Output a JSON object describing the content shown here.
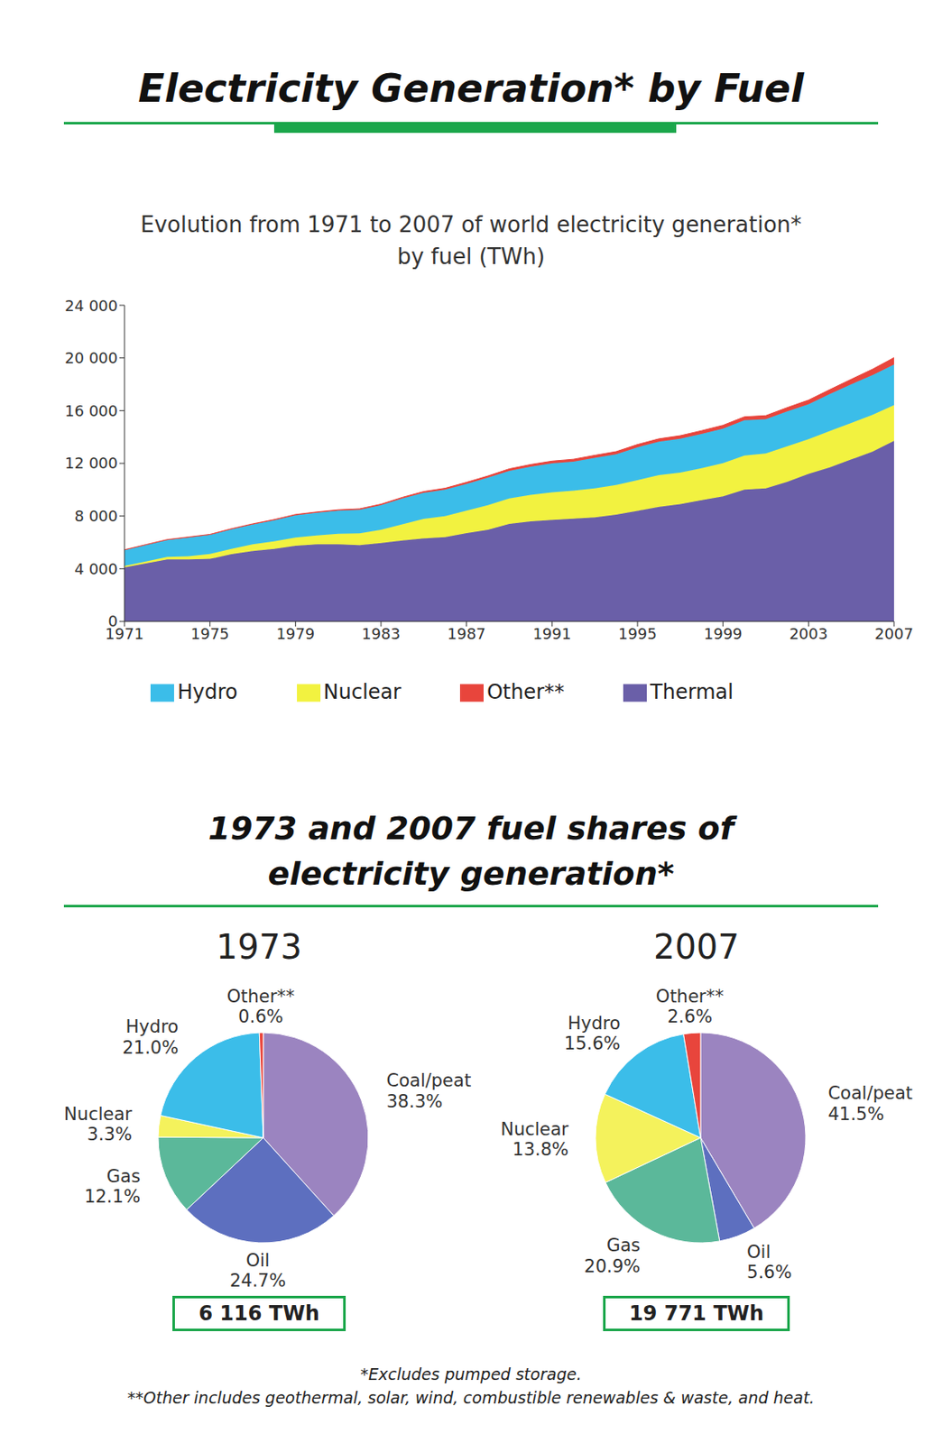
{
  "title": "Electricity Generation* by Fuel",
  "section_title": "1973 and 2007 fuel shares of electricity generation*",
  "footnotes": [
    "*Excludes pumped storage.",
    "**Other includes geothermal, solar, wind, combustible renewables & waste, and heat."
  ],
  "chart_data": [
    {
      "type": "area",
      "stacked": true,
      "title": "Evolution from 1971 to 2007 of world electricity generation* by fuel (TWh)",
      "legend": "bottom",
      "x": [
        1971,
        1972,
        1973,
        1974,
        1975,
        1976,
        1977,
        1978,
        1979,
        1980,
        1981,
        1982,
        1983,
        1984,
        1985,
        1986,
        1987,
        1988,
        1989,
        1990,
        1991,
        1992,
        1993,
        1994,
        1995,
        1996,
        1997,
        1998,
        1999,
        2000,
        2001,
        2002,
        2003,
        2004,
        2005,
        2006,
        2007
      ],
      "xlim": [
        1971,
        2007
      ],
      "xticks": [
        1971,
        1975,
        1979,
        1983,
        1987,
        1991,
        1995,
        1999,
        2003,
        2007
      ],
      "ylim": [
        0,
        24000
      ],
      "yticks": [
        0,
        {
          "value": 4000,
          "label": "4 000"
        },
        {
          "value": 8000,
          "label": "8 000"
        },
        {
          "value": 12000,
          "label": "12 000"
        },
        {
          "value": 16000,
          "label": "16 000"
        },
        {
          "value": 20000,
          "label": "20 000"
        },
        {
          "value": 24000,
          "label": "24 000"
        }
      ],
      "series": [
        {
          "name": "Thermal",
          "color": "#6a5fa8",
          "values": [
            4100,
            4400,
            4700,
            4700,
            4750,
            5100,
            5350,
            5500,
            5750,
            5850,
            5850,
            5800,
            5950,
            6150,
            6300,
            6400,
            6700,
            6950,
            7400,
            7600,
            7700,
            7800,
            7900,
            8100,
            8400,
            8700,
            8900,
            9200,
            9500,
            10000,
            10100,
            10600,
            11200,
            11700,
            12300,
            12900,
            13700
          ]
        },
        {
          "name": "Nuclear",
          "color": "#f2f240",
          "values": [
            110,
            150,
            200,
            250,
            370,
            410,
            510,
            580,
            610,
            680,
            800,
            880,
            1000,
            1230,
            1480,
            1600,
            1710,
            1880,
            1930,
            2000,
            2100,
            2120,
            2200,
            2250,
            2330,
            2410,
            2390,
            2430,
            2520,
            2590,
            2650,
            2690,
            2640,
            2760,
            2770,
            2790,
            2720
          ]
        },
        {
          "name": "Hydro",
          "color": "#3bbde9",
          "values": [
            1200,
            1250,
            1280,
            1420,
            1450,
            1480,
            1500,
            1600,
            1700,
            1720,
            1760,
            1800,
            1870,
            1950,
            1980,
            2000,
            2030,
            2080,
            2100,
            2150,
            2200,
            2210,
            2320,
            2340,
            2490,
            2530,
            2580,
            2610,
            2620,
            2680,
            2600,
            2650,
            2650,
            2800,
            2930,
            3020,
            3080
          ]
        },
        {
          "name": "Other**",
          "color": "#e8453c",
          "values": [
            30,
            32,
            35,
            38,
            40,
            45,
            48,
            52,
            55,
            60,
            65,
            70,
            80,
            90,
            100,
            110,
            120,
            130,
            150,
            160,
            170,
            180,
            190,
            200,
            210,
            220,
            230,
            240,
            250,
            260,
            270,
            290,
            310,
            340,
            380,
            440,
            520
          ]
        }
      ]
    },
    {
      "type": "pie",
      "title": "1973",
      "categories": [
        "Coal/peat",
        "Oil",
        "Gas",
        "Nuclear",
        "Hydro",
        "Other**"
      ],
      "values": [
        38.3,
        24.7,
        12.1,
        3.3,
        21.0,
        0.6
      ],
      "value_labels": [
        "38.3%",
        "24.7%",
        "12.1%",
        "3.3%",
        "21.0%",
        "0.6%"
      ],
      "colors": [
        "#9b84c0",
        "#5d6fbf",
        "#5bb89a",
        "#f4f25c",
        "#3bbde9",
        "#e8453c"
      ],
      "total": {
        "value": 6116,
        "label": "6 116 TWh"
      }
    },
    {
      "type": "pie",
      "title": "2007",
      "categories": [
        "Coal/peat",
        "Oil",
        "Gas",
        "Nuclear",
        "Hydro",
        "Other**"
      ],
      "values": [
        41.5,
        5.6,
        20.9,
        13.8,
        15.6,
        2.6
      ],
      "value_labels": [
        "41.5%",
        "5.6%",
        "20.9%",
        "13.8%",
        "15.6%",
        "2.6%"
      ],
      "colors": [
        "#9b84c0",
        "#5d6fbf",
        "#5bb89a",
        "#f4f25c",
        "#3bbde9",
        "#e8453c"
      ],
      "total": {
        "value": 19771,
        "label": "19 771 TWh"
      }
    }
  ]
}
